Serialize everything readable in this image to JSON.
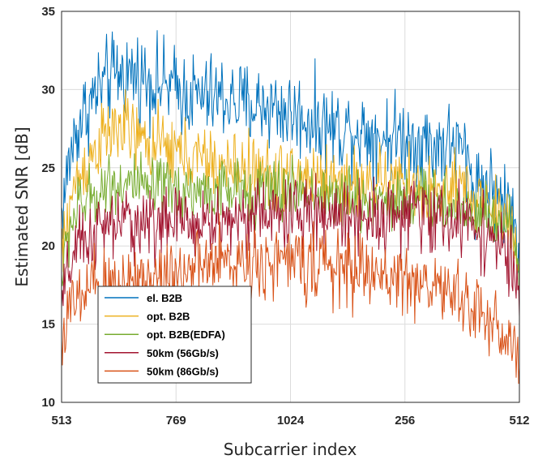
{
  "chart_data": {
    "type": "line",
    "title": "",
    "xlabel": "Subcarrier index",
    "ylabel": "Estimated SNR [dB]",
    "x_tick_labels": [
      "513",
      "769",
      "1024",
      "256",
      "512"
    ],
    "y_ticks": [
      10,
      15,
      20,
      25,
      30,
      35
    ],
    "ylim": [
      10,
      35
    ],
    "xlim": [
      0,
      1
    ],
    "grid": true,
    "legend_position": "lower-left",
    "series": [
      {
        "name": "el. B2B",
        "color": "#0072BD",
        "x": [
          0,
          0.02,
          0.04,
          0.06,
          0.08,
          0.1,
          0.12,
          0.14,
          0.16,
          0.18,
          0.2,
          0.25,
          0.3,
          0.35,
          0.4,
          0.45,
          0.5,
          0.55,
          0.6,
          0.65,
          0.7,
          0.75,
          0.8,
          0.85,
          0.88,
          0.9,
          0.92,
          0.94,
          0.96,
          0.98,
          1.0
        ],
        "y": [
          22,
          26,
          28,
          29,
          30,
          30.5,
          31,
          31,
          31,
          30.8,
          30.5,
          30,
          29.5,
          29.5,
          29,
          29,
          28.5,
          28,
          27.5,
          27.5,
          27,
          27,
          26.5,
          26.5,
          26,
          24,
          24,
          23.5,
          23,
          22.5,
          20
        ]
      },
      {
        "name": "opt. B2B",
        "color": "#EDB120",
        "x": [
          0,
          0.02,
          0.04,
          0.06,
          0.08,
          0.1,
          0.12,
          0.14,
          0.16,
          0.18,
          0.2,
          0.25,
          0.3,
          0.35,
          0.4,
          0.45,
          0.5,
          0.55,
          0.6,
          0.65,
          0.7,
          0.75,
          0.8,
          0.85,
          0.88,
          0.9,
          0.92,
          0.94,
          0.96,
          0.98,
          1.0
        ],
        "y": [
          19,
          23,
          24.5,
          25.5,
          26.5,
          27,
          27.5,
          27.5,
          27,
          26.5,
          26.5,
          26,
          25.5,
          25,
          25,
          24.5,
          24.5,
          24.5,
          24,
          24,
          24,
          24,
          23.5,
          23.5,
          23.5,
          23,
          23,
          22.5,
          22,
          21.5,
          19
        ]
      },
      {
        "name": "opt. B2B(EDFA)",
        "color": "#77AC30",
        "x": [
          0,
          0.02,
          0.04,
          0.06,
          0.08,
          0.1,
          0.12,
          0.14,
          0.16,
          0.18,
          0.2,
          0.25,
          0.3,
          0.35,
          0.4,
          0.45,
          0.5,
          0.55,
          0.6,
          0.65,
          0.7,
          0.75,
          0.8,
          0.85,
          0.88,
          0.9,
          0.92,
          0.94,
          0.96,
          0.98,
          1.0
        ],
        "y": [
          18,
          21.5,
          22.5,
          23,
          23.5,
          24,
          24,
          24,
          24,
          23.5,
          23.5,
          23.5,
          23.5,
          23.5,
          23.5,
          23.5,
          23.5,
          23.5,
          23,
          23,
          23,
          23,
          23,
          22.5,
          22.5,
          22.5,
          22,
          22,
          21.5,
          21,
          19
        ]
      },
      {
        "name": "50km (56Gb/s)",
        "color": "#A2142F",
        "x": [
          0,
          0.02,
          0.04,
          0.06,
          0.08,
          0.1,
          0.12,
          0.14,
          0.16,
          0.18,
          0.2,
          0.25,
          0.3,
          0.35,
          0.4,
          0.45,
          0.5,
          0.55,
          0.6,
          0.65,
          0.7,
          0.75,
          0.8,
          0.85,
          0.88,
          0.9,
          0.92,
          0.94,
          0.96,
          0.98,
          1.0
        ],
        "y": [
          16,
          19,
          20,
          20.5,
          21,
          21,
          21.5,
          21.5,
          21.5,
          21.5,
          21.5,
          21.5,
          21.5,
          21.5,
          22,
          22,
          22,
          22,
          22,
          22,
          22,
          22,
          22,
          21.5,
          21.5,
          21.5,
          21,
          20.5,
          20,
          19,
          16
        ]
      },
      {
        "name": "50km (86Gb/s)",
        "color": "#D95319",
        "x": [
          0,
          0.02,
          0.04,
          0.06,
          0.08,
          0.1,
          0.12,
          0.14,
          0.16,
          0.18,
          0.2,
          0.25,
          0.3,
          0.35,
          0.4,
          0.45,
          0.5,
          0.55,
          0.6,
          0.65,
          0.7,
          0.75,
          0.8,
          0.85,
          0.88,
          0.9,
          0.92,
          0.94,
          0.96,
          0.98,
          1.0
        ],
        "y": [
          14,
          16,
          16.5,
          17,
          17.5,
          17.5,
          17.5,
          18,
          18,
          18,
          18,
          18.5,
          18.5,
          19,
          19,
          19,
          19,
          19,
          18.5,
          18.5,
          18,
          18,
          17.5,
          17,
          16.5,
          16,
          15.5,
          15,
          14.5,
          14,
          12.5
        ]
      }
    ]
  }
}
